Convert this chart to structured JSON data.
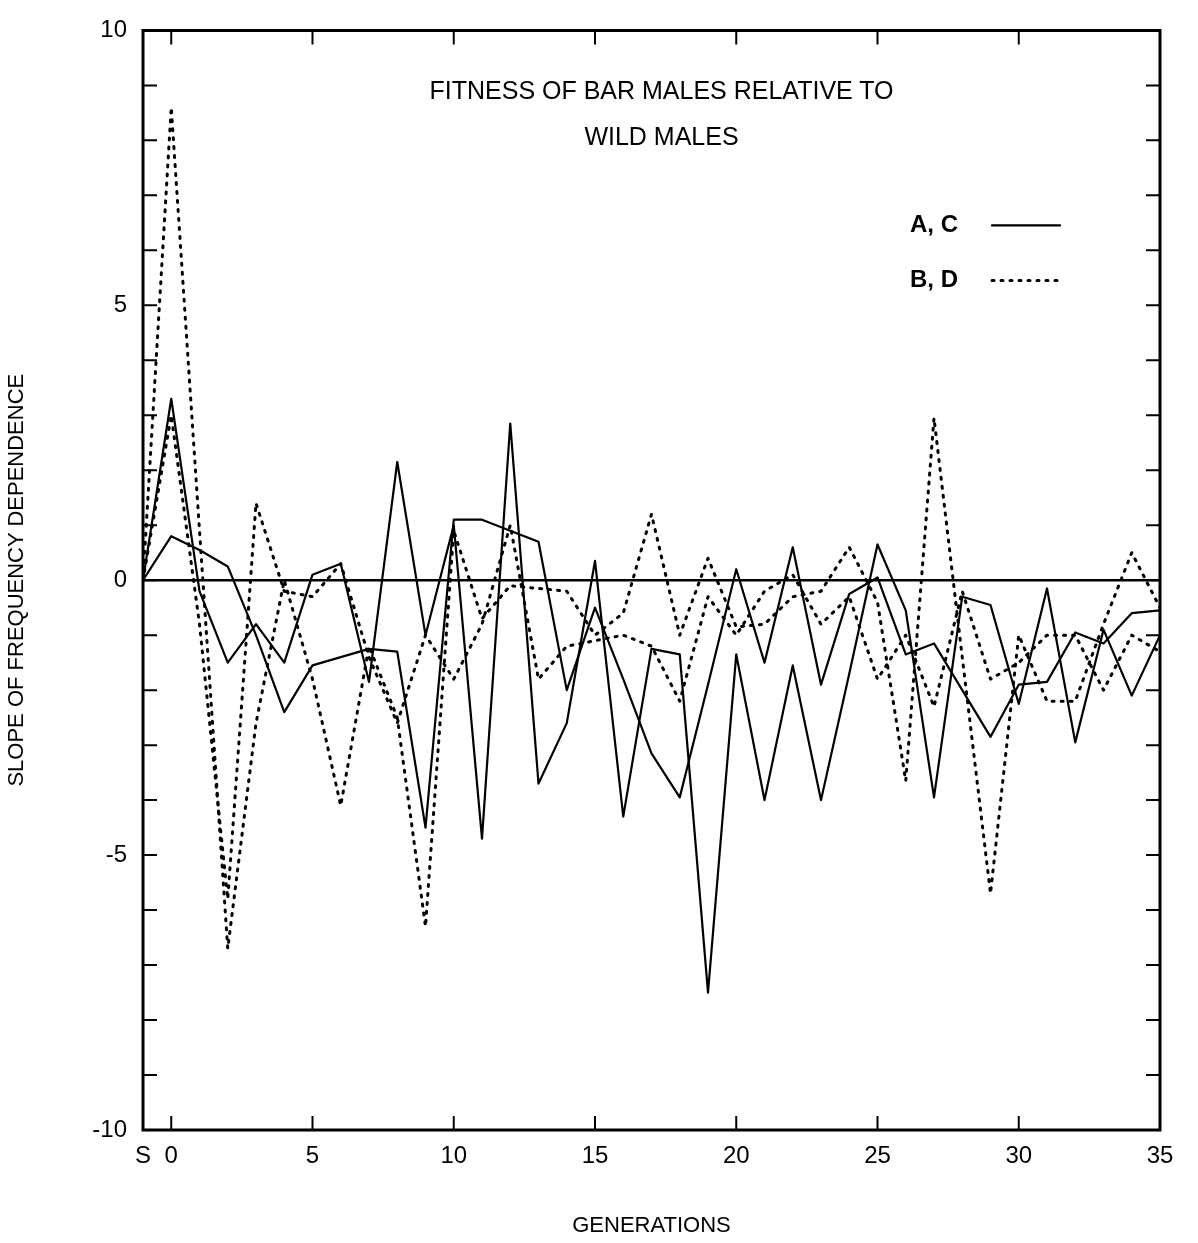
{
  "chart_data": {
    "type": "line",
    "title": "FITNESS OF BAR MALES RELATIVE TO WILD MALES",
    "xlabel": "GENERATIONS",
    "ylabel": "SLOPE OF FREQUENCY DEPENDENCE",
    "x": [
      -1,
      0,
      1,
      2,
      3,
      4,
      5,
      6,
      7,
      8,
      9,
      10,
      11,
      12,
      13,
      14,
      15,
      16,
      17,
      18,
      19,
      20,
      21,
      22,
      23,
      24,
      25,
      26,
      27,
      28,
      29,
      30,
      31,
      32,
      33,
      34,
      35
    ],
    "series": [
      {
        "name": "A, C",
        "color": "#000000",
        "line_style": "solid",
        "values": [
          0,
          3.3,
          -0.2,
          -1.5,
          -0.8,
          -1.5,
          0.1,
          0.3,
          -1.85,
          2.15,
          -1.0,
          1.0,
          -4.7,
          2.85,
          -3.7,
          -2.6,
          0.35,
          -4.3,
          -1.25,
          -1.35,
          -7.5,
          -1.35,
          -4.0,
          -1.55,
          -4.0,
          -1.7,
          0.65,
          -0.55,
          -3.95,
          -0.3,
          -0.45,
          -2.25,
          -0.15,
          -2.95,
          -0.9,
          -2.1,
          -1.0
        ]
      },
      {
        "color": "#000000",
        "line_style": "solid",
        "values": [
          0,
          0.8,
          0.55,
          0.25,
          -1.0,
          -2.4,
          -1.55,
          -1.4,
          -1.25,
          -1.3,
          -4.5,
          1.1,
          1.1,
          0.9,
          0.7,
          -2.0,
          -0.5,
          -1.8,
          -3.15,
          -3.95,
          -1.9,
          0.2,
          -1.5,
          0.6,
          -1.9,
          -0.25,
          0.05,
          -1.35,
          -1.15,
          -2.0,
          -2.85,
          -1.9,
          -1.85,
          -0.95,
          -1.15,
          -0.6,
          -0.55
        ]
      },
      {
        "name": "B, D",
        "color": "#000000",
        "line_style": "dotted",
        "values": [
          0,
          8.6,
          0.9,
          -6.7,
          -2.6,
          0.0,
          -1.8,
          -4.1,
          -1.2,
          -2.5,
          -6.3,
          0.9,
          -0.7,
          -0.1,
          -0.15,
          -0.2,
          -1.0,
          -0.6,
          1.2,
          -1.0,
          0.4,
          -0.85,
          -0.8,
          -0.3,
          -0.2,
          0.6,
          -0.4,
          -3.65,
          2.95,
          -1.4,
          -5.7,
          -1.0,
          -2.2,
          -2.2,
          -0.8,
          0.5,
          -0.5
        ]
      },
      {
        "color": "#000000",
        "line_style": "dotted",
        "values": [
          0,
          3.0,
          -0.8,
          -5.8,
          1.4,
          -0.2,
          -0.3,
          0.3,
          -1.4,
          -2.6,
          -1.0,
          -1.8,
          -0.8,
          1.0,
          -1.8,
          -1.2,
          -1.1,
          -1.0,
          -1.2,
          -2.2,
          -0.3,
          -1.0,
          -0.2,
          0.1,
          -0.8,
          -0.3,
          -1.8,
          -1.0,
          -2.3,
          -0.2,
          -1.8,
          -1.5,
          -1.0,
          -1.0,
          -2.0,
          -1.0,
          -1.3
        ]
      }
    ],
    "xlim": [
      -1,
      35
    ],
    "xticks": [
      {
        "value": -1,
        "label": "S"
      },
      0,
      5,
      10,
      15,
      20,
      25,
      30,
      35
    ],
    "ylim": [
      -10,
      10
    ],
    "yticks": [
      -10,
      {
        "value": -9,
        "label": null
      },
      {
        "value": -8,
        "label": null
      },
      {
        "value": -7,
        "label": null
      },
      {
        "value": -6,
        "label": null
      },
      -5,
      {
        "value": -4,
        "label": null
      },
      {
        "value": -3,
        "label": null
      },
      {
        "value": -2,
        "label": null
      },
      {
        "value": -1,
        "label": null
      },
      0,
      {
        "value": 1,
        "label": null
      },
      {
        "value": 2,
        "label": null
      },
      {
        "value": 3,
        "label": null
      },
      {
        "value": 4,
        "label": null
      },
      5,
      {
        "value": 6,
        "label": null
      },
      {
        "value": 7,
        "label": null
      },
      {
        "value": 8,
        "label": null
      },
      {
        "value": 9,
        "label": null
      },
      10
    ],
    "ref_lines": [
      {
        "axis": "y",
        "value": 0,
        "color": "#000000"
      }
    ],
    "legend": "top right",
    "marker": "none",
    "grid": false
  }
}
